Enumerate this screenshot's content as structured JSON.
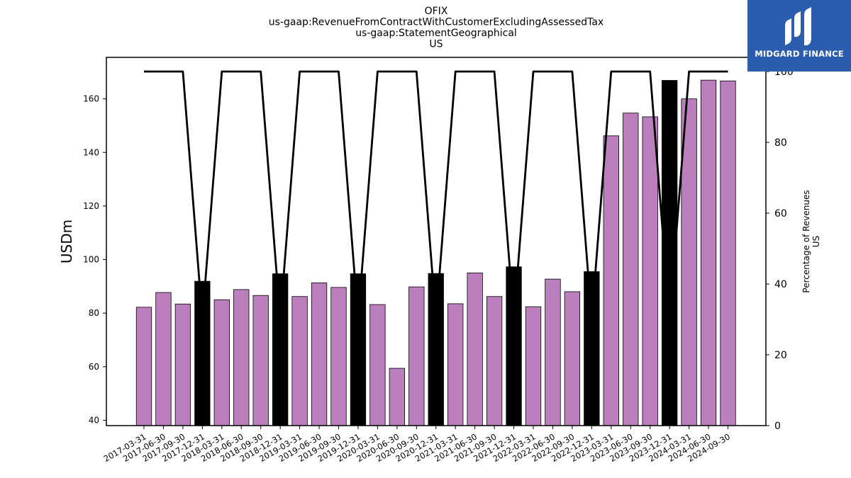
{
  "logo": {
    "text": "MIDGARD FINANCE"
  },
  "chart_data": {
    "type": "bar",
    "title": [
      "OFIX",
      "us-gaap:RevenueFromContractWithCustomerExcludingAssessedTax",
      "us-gaap:StatementGeographical",
      "US"
    ],
    "ylabel": "USDm",
    "y2label": [
      "Percentage of Revenues",
      "US"
    ],
    "ylim": [
      38,
      175.5
    ],
    "y2lim": [
      0,
      104
    ],
    "yticks": [
      40,
      60,
      80,
      100,
      120,
      140,
      160
    ],
    "y2ticks": [
      0,
      20,
      40,
      60,
      80,
      100
    ],
    "categories": [
      "2017-03-31",
      "2017-06-30",
      "2017-09-30",
      "2017-12-31",
      "2018-03-31",
      "2018-06-30",
      "2018-09-30",
      "2018-12-31",
      "2019-03-31",
      "2019-06-30",
      "2019-09-30",
      "2019-12-31",
      "2020-03-31",
      "2020-06-30",
      "2020-09-30",
      "2020-12-31",
      "2021-03-31",
      "2021-06-30",
      "2021-09-30",
      "2021-12-31",
      "2022-03-31",
      "2022-06-30",
      "2022-09-30",
      "2022-12-31",
      "2023-03-31",
      "2023-06-30",
      "2023-09-30",
      "2023-12-31",
      "2024-03-31",
      "2024-06-30",
      "2024-09-30"
    ],
    "series": [
      {
        "type": "bar",
        "values": [
          82.2,
          87.7,
          83.4,
          91.9,
          85.0,
          88.8,
          86.6,
          94.7,
          86.2,
          91.3,
          89.6,
          94.7,
          83.2,
          59.4,
          89.8,
          94.8,
          83.5,
          95.0,
          86.2,
          97.3,
          82.4,
          92.7,
          88.0,
          95.5,
          146.2,
          154.7,
          153.3,
          166.9,
          160.0,
          167.0,
          166.7
        ],
        "colors": [
          "#bc7fbd",
          "#bc7fbd",
          "#bc7fbd",
          "#000000",
          "#bc7fbd",
          "#bc7fbd",
          "#bc7fbd",
          "#000000",
          "#bc7fbd",
          "#bc7fbd",
          "#bc7fbd",
          "#000000",
          "#bc7fbd",
          "#bc7fbd",
          "#bc7fbd",
          "#000000",
          "#bc7fbd",
          "#bc7fbd",
          "#bc7fbd",
          "#000000",
          "#bc7fbd",
          "#bc7fbd",
          "#bc7fbd",
          "#000000",
          "#bc7fbd",
          "#bc7fbd",
          "#bc7fbd",
          "#000000",
          "#bc7fbd",
          "#bc7fbd",
          "#bc7fbd"
        ]
      },
      {
        "type": "line",
        "axis": "right",
        "color": "#000000",
        "values": [
          100,
          100,
          100,
          30,
          100,
          100,
          100,
          30,
          100,
          100,
          100,
          30,
          100,
          100,
          100,
          30,
          100,
          100,
          100,
          30,
          100,
          100,
          100,
          30,
          100,
          100,
          100,
          30,
          100,
          100,
          100
        ]
      }
    ],
    "grid": false,
    "bar_color": "#bc7fbd",
    "highlight_color": "#000000"
  }
}
